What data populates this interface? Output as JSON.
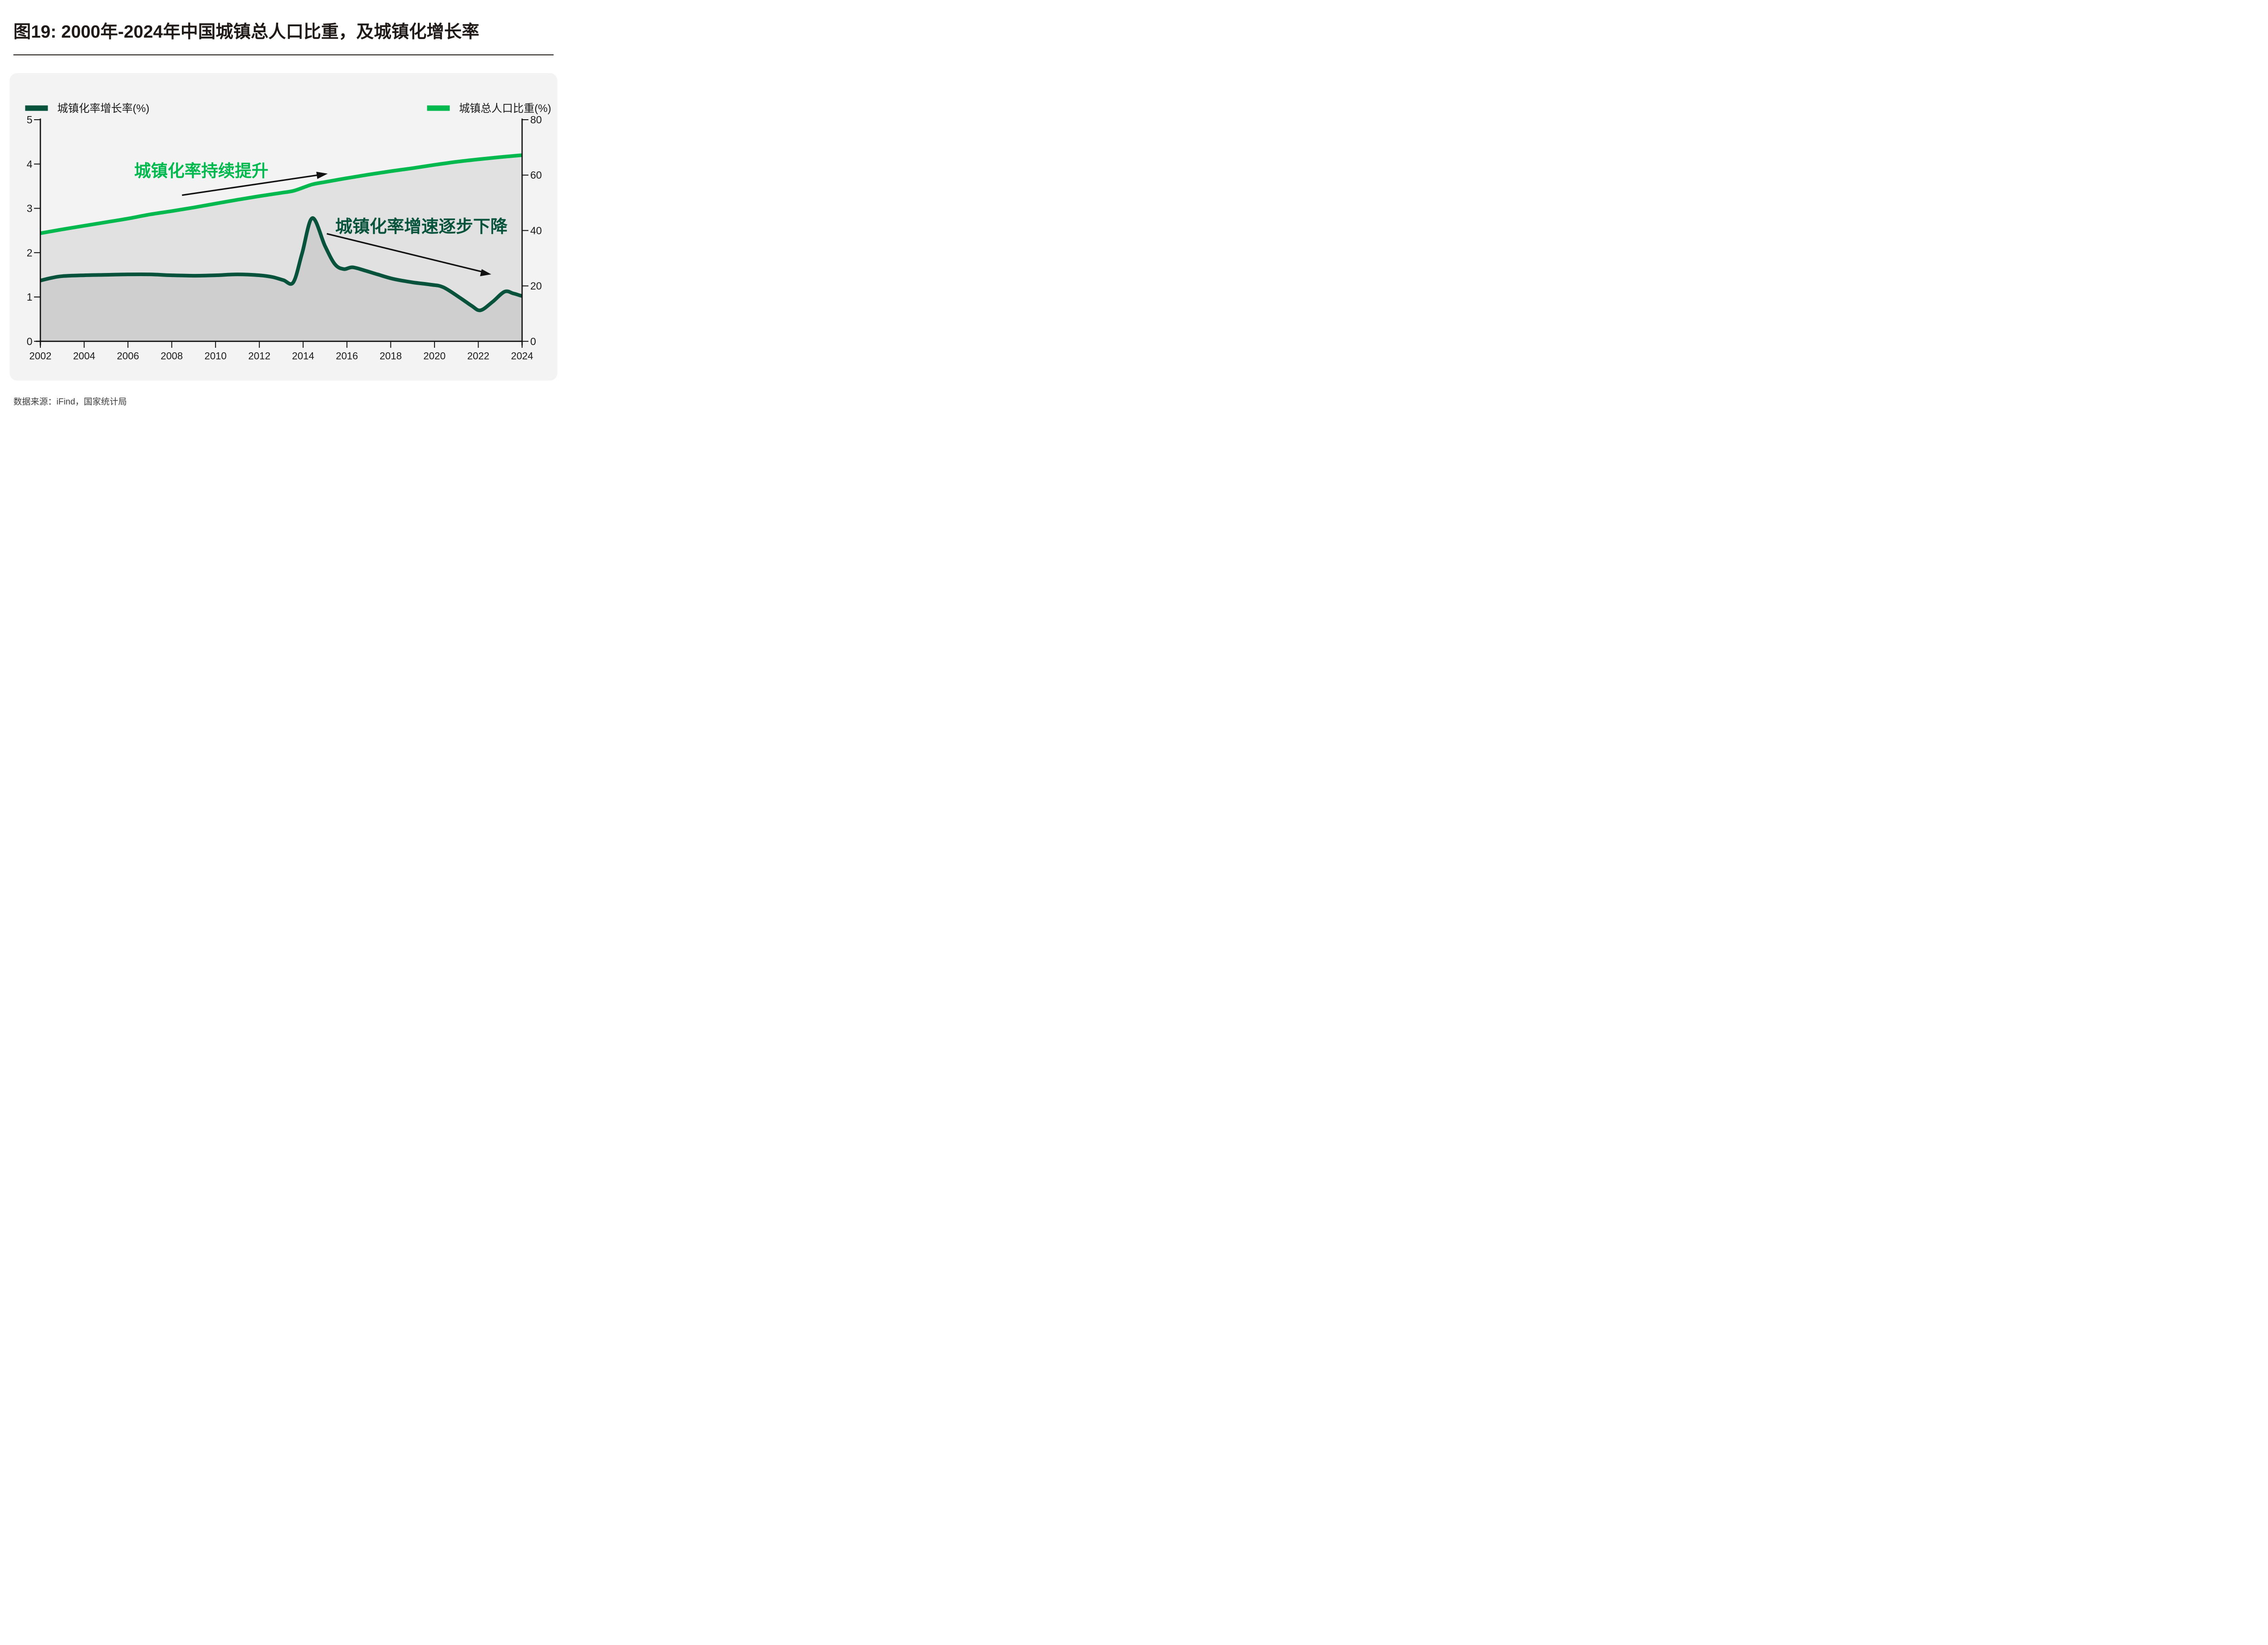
{
  "page": {
    "title": "图19: 2000年-2024年中国城镇总人口比重，及城镇化增长率",
    "source": "数据来源：iFind，国家统计局"
  },
  "colors": {
    "growth_line": "#06523B",
    "share_line": "#00B94E",
    "share_area_fill": "#E1E1E1",
    "growth_area_fill": "#CFCFCF",
    "card_background": "#F3F3F3",
    "axis": "#111111",
    "title_text": "#1F1A17",
    "source_text": "#3D3D3D"
  },
  "legend": {
    "left": {
      "label": "城镇化率增长率(%)",
      "color": "#06523B"
    },
    "right": {
      "label": "城镇总人口比重(%)",
      "color": "#00B94E"
    }
  },
  "chart_data": {
    "type": "line",
    "title": "图19: 2000年-2024年中国城镇总人口比重，及城镇化增长率",
    "xlabel": "",
    "ylabel_left": "城镇化率增长率(%)",
    "ylabel_right": "城镇总人口比重(%)",
    "grid": false,
    "legend_position": "top",
    "x_axis": {
      "min": 2002,
      "max": 2024,
      "tick_labels": [
        "2002",
        "2004",
        "2006",
        "2008",
        "2010",
        "2012",
        "2014",
        "2016",
        "2018",
        "2020",
        "2022",
        "2024"
      ]
    },
    "left_axis": {
      "label": "城镇化率增长率(%)",
      "min": 0,
      "max": 5,
      "ticks": [
        0,
        1,
        2,
        3,
        4,
        5
      ]
    },
    "right_axis": {
      "label": "城镇总人口比重(%)",
      "min": 0,
      "max": 80,
      "ticks": [
        0,
        20,
        40,
        60,
        80
      ]
    },
    "series": [
      {
        "name": "城镇总人口比重(%)",
        "axis": "right",
        "color": "#00B94E",
        "area_fill": "#E1E1E1",
        "points": [
          [
            2002,
            39.0
          ],
          [
            2003,
            40.4
          ],
          [
            2004,
            41.7
          ],
          [
            2005,
            43.0
          ],
          [
            2006,
            44.3
          ],
          [
            2007,
            45.8
          ],
          [
            2008,
            47.0
          ],
          [
            2009,
            48.3
          ],
          [
            2010,
            49.7
          ],
          [
            2011,
            51.1
          ],
          [
            2012,
            52.4
          ],
          [
            2013,
            53.6
          ],
          [
            2013.6,
            54.4
          ],
          [
            2014.4,
            56.6
          ],
          [
            2015,
            57.5
          ],
          [
            2016,
            58.9
          ],
          [
            2017,
            60.2
          ],
          [
            2018,
            61.4
          ],
          [
            2019,
            62.5
          ],
          [
            2020,
            63.7
          ],
          [
            2021,
            64.8
          ],
          [
            2022,
            65.7
          ],
          [
            2023,
            66.5
          ],
          [
            2024,
            67.2
          ]
        ]
      },
      {
        "name": "城镇化率增长率(%)",
        "axis": "left",
        "color": "#06523B",
        "area_fill": "#CFCFCF",
        "points": [
          [
            2002,
            1.37
          ],
          [
            2002.5,
            1.43
          ],
          [
            2003,
            1.47
          ],
          [
            2004,
            1.49
          ],
          [
            2005,
            1.5
          ],
          [
            2006,
            1.51
          ],
          [
            2007,
            1.51
          ],
          [
            2008,
            1.49
          ],
          [
            2009,
            1.48
          ],
          [
            2010,
            1.49
          ],
          [
            2011,
            1.51
          ],
          [
            2012,
            1.49
          ],
          [
            2012.6,
            1.45
          ],
          [
            2013.1,
            1.38
          ],
          [
            2013.55,
            1.33
          ],
          [
            2013.95,
            1.98
          ],
          [
            2014.42,
            2.78
          ],
          [
            2015,
            2.15
          ],
          [
            2015.45,
            1.74
          ],
          [
            2015.85,
            1.63
          ],
          [
            2016.25,
            1.67
          ],
          [
            2016.8,
            1.6
          ],
          [
            2017.4,
            1.51
          ],
          [
            2018.1,
            1.41
          ],
          [
            2019,
            1.33
          ],
          [
            2019.8,
            1.28
          ],
          [
            2020.4,
            1.22
          ],
          [
            2021.2,
            0.97
          ],
          [
            2021.7,
            0.8
          ],
          [
            2022.1,
            0.7
          ],
          [
            2022.65,
            0.89
          ],
          [
            2023.2,
            1.12
          ],
          [
            2023.6,
            1.08
          ],
          [
            2024,
            1.02
          ]
        ]
      }
    ],
    "annotations": [
      {
        "text": "城镇化率持续提升",
        "color": "#00B94E",
        "arrow": "up-right"
      },
      {
        "text": "城镇化率增速逐步下降",
        "color": "#06523B",
        "arrow": "down-right"
      }
    ]
  }
}
